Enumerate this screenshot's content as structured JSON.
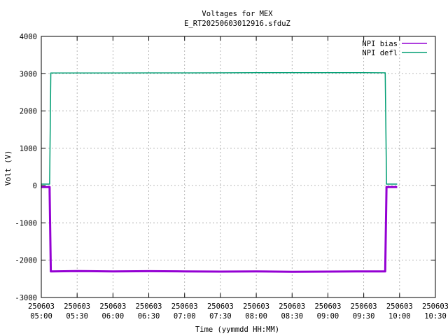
{
  "chart_data": {
    "type": "line",
    "title": "Voltages for MEX",
    "subtitle": "E_RT20250603012916.sfduZ",
    "xlabel": "Time (yymmdd HH:MM)",
    "ylabel": "Volt (V)",
    "xlim": [
      "250603 05:00",
      "250603 10:30"
    ],
    "ylim": [
      -3000,
      4000
    ],
    "grid": true,
    "legend_position": "top-right",
    "y_ticks": [
      -3000,
      -2000,
      -1000,
      0,
      1000,
      2000,
      3000,
      4000
    ],
    "x_ticks": [
      {
        "date": "250603",
        "time": "05:00"
      },
      {
        "date": "250603",
        "time": "05:30"
      },
      {
        "date": "250603",
        "time": "06:00"
      },
      {
        "date": "250603",
        "time": "06:30"
      },
      {
        "date": "250603",
        "time": "07:00"
      },
      {
        "date": "250603",
        "time": "07:30"
      },
      {
        "date": "250603",
        "time": "08:00"
      },
      {
        "date": "250603",
        "time": "08:30"
      },
      {
        "date": "250603",
        "time": "09:00"
      },
      {
        "date": "250603",
        "time": "09:30"
      },
      {
        "date": "250603",
        "time": "10:00"
      },
      {
        "date": "250603",
        "time": "10:30"
      }
    ],
    "series": [
      {
        "name": "NPI bias",
        "color": "#9400d3",
        "points": [
          [
            "250603 05:00",
            -40
          ],
          [
            "250603 05:07",
            -40
          ],
          [
            "250603 05:07",
            -150
          ],
          [
            "250603 05:08",
            -2300
          ],
          [
            "250603 05:30",
            -2290
          ],
          [
            "250603 06:00",
            -2300
          ],
          [
            "250603 06:30",
            -2295
          ],
          [
            "250603 07:00",
            -2300
          ],
          [
            "250603 07:30",
            -2305
          ],
          [
            "250603 08:00",
            -2300
          ],
          [
            "250603 08:30",
            -2310
          ],
          [
            "250603 09:00",
            -2305
          ],
          [
            "250603 09:30",
            -2300
          ],
          [
            "250603 09:48",
            -2300
          ],
          [
            "250603 09:49",
            -100
          ],
          [
            "250603 09:49",
            -40
          ],
          [
            "250603 09:58",
            -40
          ]
        ]
      },
      {
        "name": "NPI defl",
        "color": "#009e73",
        "points": [
          [
            "250603 05:00",
            40
          ],
          [
            "250603 05:07",
            40
          ],
          [
            "250603 05:08",
            3020
          ],
          [
            "250603 05:30",
            3020
          ],
          [
            "250603 06:00",
            3020
          ],
          [
            "250603 06:30",
            3022
          ],
          [
            "250603 07:00",
            3022
          ],
          [
            "250603 07:30",
            3025
          ],
          [
            "250603 08:00",
            3028
          ],
          [
            "250603 08:30",
            3030
          ],
          [
            "250603 09:00",
            3030
          ],
          [
            "250603 09:30",
            3028
          ],
          [
            "250603 09:48",
            3025
          ],
          [
            "250603 09:49",
            200
          ],
          [
            "250603 09:49",
            40
          ],
          [
            "250603 09:58",
            40
          ]
        ]
      }
    ]
  }
}
